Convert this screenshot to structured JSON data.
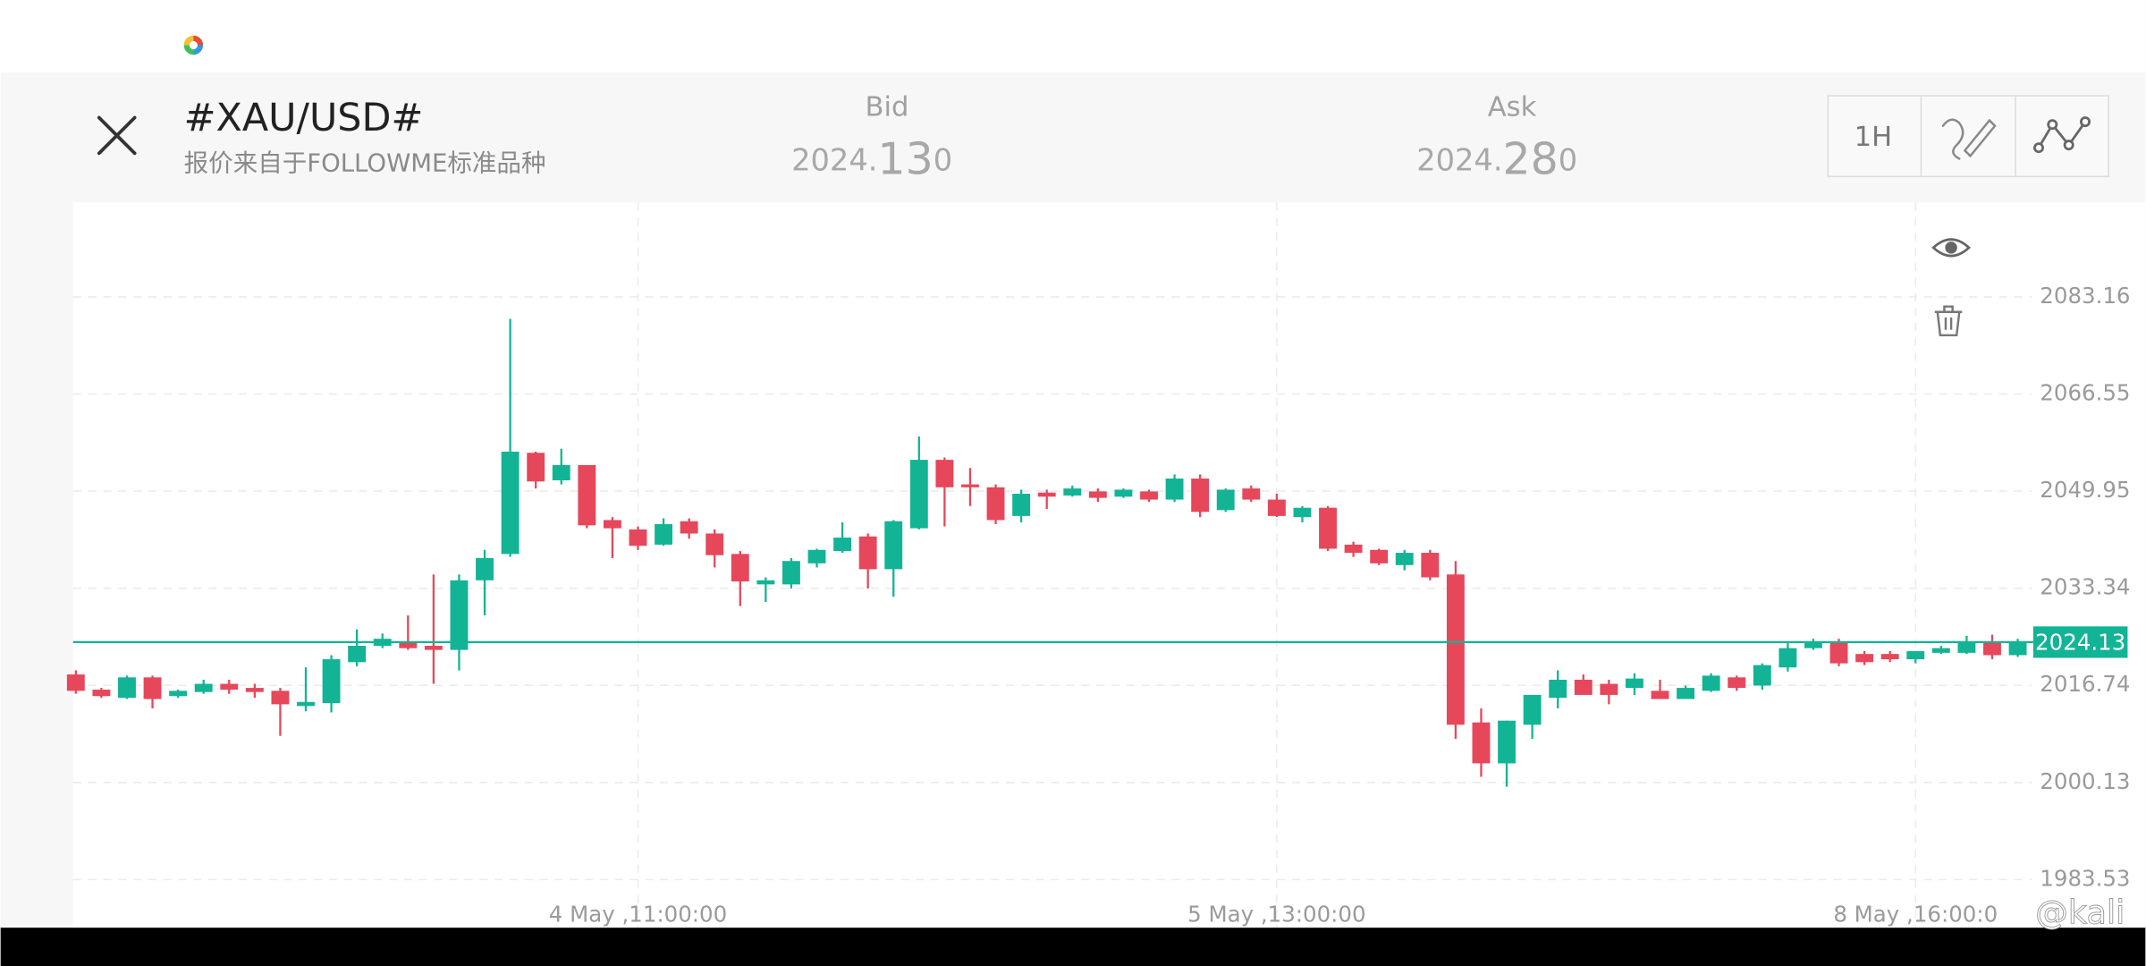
{
  "header": {
    "symbol": "#XAU/USD#",
    "source": "报价来自于FOLLOWME标准品种",
    "bid_label": "Bid",
    "bid_price": [
      "2024.",
      "13",
      "0"
    ],
    "ask_label": "Ask",
    "ask_price": [
      "2024.",
      "28",
      "0"
    ],
    "timeframe": "1H",
    "watermark": "@kali"
  },
  "chart_data": {
    "type": "candlestick",
    "categories": [
      null,
      null,
      null,
      null,
      null,
      null,
      null,
      null,
      null,
      null,
      null,
      null,
      null,
      null,
      null,
      null,
      null,
      null,
      null,
      null,
      null,
      null,
      "4 May ,11:00:00",
      null,
      null,
      null,
      null,
      null,
      null,
      null,
      null,
      null,
      null,
      null,
      null,
      null,
      null,
      null,
      null,
      null,
      null,
      null,
      null,
      null,
      null,
      null,
      null,
      "5 May ,13:00:00",
      null,
      null,
      null,
      null,
      null,
      null,
      null,
      null,
      null,
      null,
      null,
      null,
      null,
      null,
      null,
      null,
      null,
      null,
      null,
      null,
      null,
      null,
      null,
      null,
      "8 May ,16:00:0",
      null,
      null,
      null,
      null
    ],
    "open": [
      2018.6,
      2016.0,
      2014.6,
      2018.1,
      2014.9,
      2015.6,
      2017.0,
      2016.3,
      2015.8,
      2013.2,
      2013.7,
      2020.7,
      2023.5,
      2024.0,
      2023.5,
      2022.8,
      2034.7,
      2039.2,
      2056.5,
      2051.8,
      2054.4,
      2045.0,
      2043.4,
      2040.8,
      2044.8,
      2042.7,
      2039.2,
      2034.0,
      2034.0,
      2037.6,
      2039.7,
      2042.2,
      2036.6,
      2043.6,
      2055.3,
      2051.1,
      2050.6,
      2045.7,
      2049.7,
      2049.2,
      2049.9,
      2049.0,
      2049.9,
      2048.5,
      2052.1,
      2046.7,
      2050.4,
      2048.5,
      2045.5,
      2047.1,
      2040.8,
      2039.9,
      2037.3,
      2039.4,
      2035.7,
      2010.4,
      2003.4,
      2010.0,
      2014.6,
      2017.7,
      2017.0,
      2016.3,
      2015.8,
      2014.4,
      2015.8,
      2018.1,
      2016.7,
      2019.8,
      2023.1,
      2024.0,
      2022.1,
      2022.1,
      2021.2,
      2022.3,
      2022.3,
      2024.2,
      2021.9
    ],
    "high": [
      2019.3,
      2016.3,
      2018.4,
      2018.4,
      2016.0,
      2017.7,
      2017.7,
      2017.0,
      2016.3,
      2019.8,
      2021.9,
      2026.3,
      2025.6,
      2028.7,
      2035.7,
      2035.7,
      2039.9,
      2079.4,
      2056.7,
      2057.2,
      2054.4,
      2045.5,
      2043.9,
      2045.3,
      2045.3,
      2043.4,
      2039.7,
      2035.2,
      2038.5,
      2040.1,
      2044.6,
      2042.7,
      2045.0,
      2059.3,
      2055.7,
      2053.9,
      2051.1,
      2050.2,
      2050.2,
      2050.9,
      2050.4,
      2050.4,
      2050.2,
      2052.8,
      2052.8,
      2050.4,
      2050.9,
      2049.5,
      2047.4,
      2047.4,
      2041.3,
      2040.1,
      2039.9,
      2039.9,
      2038.0,
      2012.8,
      2010.7,
      2015.1,
      2019.3,
      2018.6,
      2017.7,
      2018.8,
      2017.7,
      2016.7,
      2018.8,
      2018.4,
      2020.5,
      2024.0,
      2024.7,
      2024.7,
      2022.6,
      2022.6,
      2022.6,
      2023.5,
      2025.2,
      2025.4,
      2024.7
    ],
    "low": [
      2015.3,
      2014.6,
      2014.4,
      2012.8,
      2014.6,
      2015.3,
      2015.3,
      2014.6,
      2008.1,
      2012.3,
      2012.1,
      2020.0,
      2023.1,
      2022.8,
      2017.0,
      2019.3,
      2028.7,
      2038.7,
      2050.4,
      2051.1,
      2043.6,
      2038.5,
      2039.9,
      2040.6,
      2041.8,
      2036.9,
      2030.3,
      2031.0,
      2033.3,
      2036.9,
      2039.4,
      2033.3,
      2031.9,
      2043.4,
      2043.9,
      2047.4,
      2044.3,
      2044.6,
      2046.9,
      2049.0,
      2048.1,
      2048.8,
      2048.1,
      2048.1,
      2045.5,
      2046.4,
      2048.1,
      2045.5,
      2044.6,
      2039.7,
      2038.7,
      2037.3,
      2036.4,
      2034.7,
      2007.6,
      2001.1,
      1999.4,
      2007.6,
      2012.8,
      2015.1,
      2013.5,
      2015.1,
      2014.4,
      2014.4,
      2015.6,
      2015.8,
      2016.0,
      2019.1,
      2022.8,
      2020.0,
      2020.2,
      2020.7,
      2020.5,
      2022.1,
      2022.1,
      2021.2,
      2021.6
    ],
    "close": [
      2015.8,
      2014.9,
      2018.1,
      2014.4,
      2015.8,
      2017.0,
      2016.0,
      2015.6,
      2013.5,
      2013.9,
      2021.2,
      2023.5,
      2024.7,
      2023.1,
      2022.8,
      2034.7,
      2038.5,
      2056.7,
      2051.6,
      2054.4,
      2044.1,
      2043.6,
      2040.6,
      2044.3,
      2042.7,
      2039.0,
      2034.5,
      2034.7,
      2038.0,
      2039.9,
      2042.0,
      2036.6,
      2044.8,
      2055.3,
      2050.6,
      2050.6,
      2045.0,
      2049.5,
      2049.0,
      2050.4,
      2048.8,
      2050.2,
      2048.5,
      2052.1,
      2046.4,
      2050.2,
      2048.5,
      2045.7,
      2047.1,
      2040.1,
      2039.4,
      2037.6,
      2039.4,
      2035.2,
      2010.0,
      2003.4,
      2010.7,
      2015.1,
      2017.7,
      2015.1,
      2015.1,
      2017.9,
      2014.4,
      2016.3,
      2018.4,
      2016.3,
      2020.2,
      2023.1,
      2024.0,
      2020.5,
      2020.7,
      2021.2,
      2022.6,
      2023.1,
      2024.2,
      2021.9,
      2024.13
    ],
    "up_color": "#12b495",
    "down_color": "#e6475a",
    "last_price": 2024.13,
    "ylim": [
      1975.3,
      2099.3
    ],
    "yticks": [
      1983.53,
      2000.13,
      2016.74,
      2033.34,
      2049.95,
      2066.55,
      2083.16
    ],
    "grid": true
  }
}
